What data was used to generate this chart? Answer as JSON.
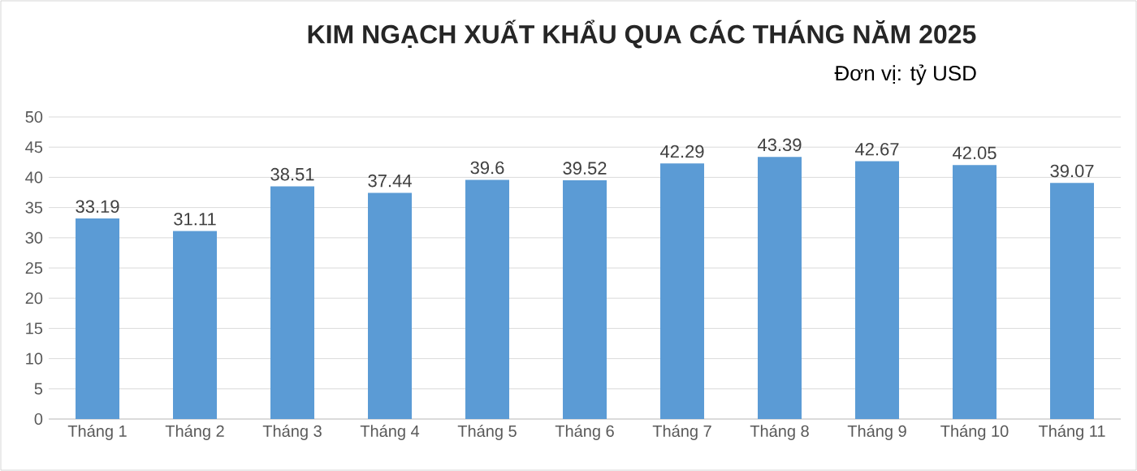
{
  "chart_data": {
    "type": "bar",
    "title": "KIM NGẠCH XUẤT KHẨU QUA CÁC THÁNG NĂM 2025",
    "subtitle": "Đơn vị: tỷ USD",
    "categories": [
      "Tháng 1",
      "Tháng 2",
      "Tháng 3",
      "Tháng 4",
      "Tháng 5",
      "Tháng 6",
      "Tháng 7",
      "Tháng 8",
      "Tháng 9",
      "Tháng 10",
      "Tháng 11"
    ],
    "values": [
      33.19,
      31.11,
      38.51,
      37.44,
      39.6,
      39.52,
      42.29,
      43.39,
      42.67,
      42.05,
      39.07
    ],
    "color": "#5b9bd5",
    "ylim": [
      0,
      50
    ],
    "yticks": [
      0,
      5,
      10,
      15,
      20,
      25,
      30,
      35,
      40,
      45,
      50
    ],
    "grid": "y",
    "data_labels": true
  }
}
